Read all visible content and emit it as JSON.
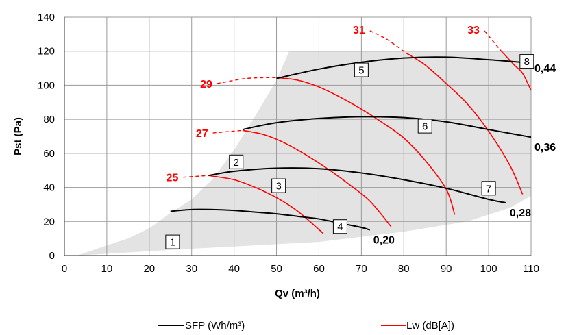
{
  "chart_data": {
    "type": "line",
    "xlabel": "Qv (m³/h)",
    "ylabel": "Pst (Pa)",
    "xlim": [
      0,
      110
    ],
    "ylim": [
      0,
      140
    ],
    "x_ticks": [
      "0",
      "10",
      "20",
      "30",
      "40",
      "50",
      "60",
      "70",
      "80",
      "90",
      "100",
      "110"
    ],
    "y_ticks": [
      "0",
      "20",
      "40",
      "60",
      "80",
      "100",
      "120",
      "140"
    ],
    "grid": true,
    "colors": {
      "sfp": "#000000",
      "lw": "#ff0000",
      "region": "#e3e3e3",
      "grid": "#9a9a9a"
    },
    "operating_region": {
      "upper": [
        [
          3,
          0
        ],
        [
          10,
          6
        ],
        [
          15,
          10
        ],
        [
          20,
          16
        ],
        [
          25,
          25
        ],
        [
          30,
          33
        ],
        [
          35,
          45
        ],
        [
          40,
          62
        ],
        [
          45,
          82
        ],
        [
          50,
          103
        ],
        [
          53,
          120
        ],
        [
          110,
          120
        ]
      ],
      "lower": [
        [
          3,
          0
        ],
        [
          30,
          4
        ],
        [
          60,
          8
        ],
        [
          80,
          14
        ],
        [
          95,
          20
        ],
        [
          105,
          28
        ],
        [
          110,
          35
        ]
      ]
    },
    "box_labels": [
      {
        "label": "1",
        "x": 25.5,
        "y": 8
      },
      {
        "label": "2",
        "x": 40.5,
        "y": 55
      },
      {
        "label": "3",
        "x": 50.5,
        "y": 41
      },
      {
        "label": "4",
        "x": 65,
        "y": 17
      },
      {
        "label": "5",
        "x": 70,
        "y": 109
      },
      {
        "label": "6",
        "x": 85,
        "y": 76
      },
      {
        "label": "7",
        "x": 100,
        "y": 39.5
      },
      {
        "label": "8",
        "x": 109,
        "y": 114
      }
    ],
    "series": [
      {
        "name": "SFP (Wh/m³)",
        "kind": "sfp",
        "curves": [
          {
            "label": "0,20",
            "points": [
              [
                25,
                26
              ],
              [
                30,
                27
              ],
              [
                35,
                27
              ],
              [
                40,
                26.5
              ],
              [
                45,
                25.5
              ],
              [
                50,
                24.5
              ],
              [
                55,
                23
              ],
              [
                60,
                21.5
              ],
              [
                65,
                19
              ],
              [
                70,
                16.5
              ],
              [
                72,
                15
              ]
            ]
          },
          {
            "label": "0,28",
            "points": [
              [
                34,
                47
              ],
              [
                40,
                49.5
              ],
              [
                50,
                51.3
              ],
              [
                60,
                51
              ],
              [
                70,
                48.5
              ],
              [
                80,
                44.5
              ],
              [
                90,
                39.5
              ],
              [
                100,
                33
              ],
              [
                104,
                31
              ]
            ]
          },
          {
            "label": "0,36",
            "points": [
              [
                42,
                74
              ],
              [
                50,
                78
              ],
              [
                60,
                80.5
              ],
              [
                70,
                81.5
              ],
              [
                80,
                81
              ],
              [
                90,
                78.5
              ],
              [
                100,
                74
              ],
              [
                110,
                69.5
              ]
            ]
          },
          {
            "label": "0,44",
            "points": [
              [
                50,
                104
              ],
              [
                60,
                109.5
              ],
              [
                70,
                113.5
              ],
              [
                80,
                116
              ],
              [
                90,
                116.5
              ],
              [
                100,
                115
              ],
              [
                110,
                113
              ]
            ]
          }
        ]
      },
      {
        "name": "Lw (dB[A])",
        "kind": "lw",
        "curves": [
          {
            "label": "25",
            "points": [
              [
                34,
                47
              ],
              [
                40,
                44.5
              ],
              [
                45,
                40
              ],
              [
                50,
                34
              ],
              [
                55,
                26
              ],
              [
                61,
                13
              ]
            ],
            "dashed": [
              [
                28,
                46
              ],
              [
                34,
                47
              ]
            ]
          },
          {
            "label": "27",
            "points": [
              [
                42,
                73.5
              ],
              [
                47,
                71
              ],
              [
                52,
                66
              ],
              [
                57,
                59
              ],
              [
                62,
                51
              ],
              [
                67,
                42
              ],
              [
                72,
                32
              ],
              [
                77,
                17
              ]
            ],
            "dashed": [
              [
                35,
                72
              ],
              [
                42,
                73.5
              ]
            ]
          },
          {
            "label": "29",
            "points": [
              [
                50,
                104.5
              ],
              [
                55,
                103
              ],
              [
                60,
                99
              ],
              [
                65,
                93
              ],
              [
                70,
                86
              ],
              [
                75,
                78
              ],
              [
                80,
                69
              ],
              [
                85,
                56
              ],
              [
                90,
                39
              ],
              [
                92,
                24
              ]
            ],
            "dashed": [
              [
                36,
                101
              ],
              [
                43,
                104
              ],
              [
                50,
                104.5
              ]
            ]
          },
          {
            "label": "31",
            "points": [
              [
                80.5,
                119
              ],
              [
                85,
                112
              ],
              [
                90,
                101
              ],
              [
                95,
                89
              ],
              [
                100,
                73
              ],
              [
                105,
                53
              ],
              [
                108,
                36
              ]
            ],
            "dashed": [
              [
                72,
                132
              ],
              [
                76,
                127
              ],
              [
                80.5,
                119
              ]
            ]
          },
          {
            "label": "33",
            "points": [
              [
                103,
                120
              ],
              [
                106,
                112
              ],
              [
                108,
                107
              ],
              [
                110,
                97
              ]
            ],
            "dashed": [
              [
                99,
                132
              ],
              [
                103,
                120
              ]
            ]
          }
        ]
      }
    ],
    "legend": [
      {
        "label": "SFP (Wh/m³)",
        "color": "#000000"
      },
      {
        "label": "Lw (dB[A])",
        "color": "#ff0000"
      }
    ],
    "legend_position": "bottom"
  }
}
